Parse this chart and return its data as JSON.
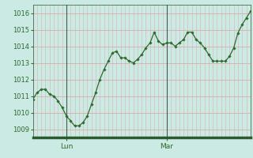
{
  "y_values": [
    1010.8,
    1011.2,
    1011.4,
    1011.4,
    1011.1,
    1011.0,
    1010.7,
    1010.3,
    1009.8,
    1009.5,
    1009.2,
    1009.2,
    1009.4,
    1009.8,
    1010.5,
    1011.2,
    1012.0,
    1012.6,
    1013.1,
    1013.6,
    1013.7,
    1013.3,
    1013.3,
    1013.1,
    1013.0,
    1013.2,
    1013.5,
    1013.9,
    1014.2,
    1014.85,
    1014.3,
    1014.1,
    1014.2,
    1014.2,
    1014.0,
    1014.2,
    1014.4,
    1014.85,
    1014.85,
    1014.4,
    1014.2,
    1013.9,
    1013.5,
    1013.1,
    1013.1,
    1013.1,
    1013.1,
    1013.4,
    1013.9,
    1014.8,
    1015.3,
    1015.7,
    1016.1
  ],
  "n_points": 53,
  "lun_idx": 8,
  "mar_idx": 32,
  "ylim": [
    1008.5,
    1016.5
  ],
  "yticks": [
    1009,
    1010,
    1011,
    1012,
    1013,
    1014,
    1015,
    1016
  ],
  "line_color": "#2d6a2d",
  "marker_color": "#2d6a2d",
  "bg_color": "#cceae4",
  "plot_bg_color": "#cceae4",
  "grid_color_h": "#d9a0a0",
  "grid_color_v": "#d9b0b0",
  "vline_color": "#4a5a4a",
  "axis_line_color": "#2d5a2d",
  "tick_label_color": "#2d6a2d",
  "tick_fontsize": 6.0,
  "bottom_bar_color": "#2d5a2d",
  "outer_bg_color": "#cceae4"
}
